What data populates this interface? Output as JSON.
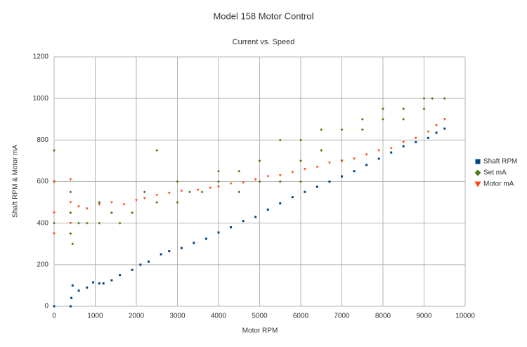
{
  "chart_data": {
    "type": "scatter",
    "title": "Model 158 Motor Control",
    "subtitle": "Current vs. Speed",
    "x_label": "Motor RPM",
    "y_label": "Shaft RPM & Motor mA",
    "xlim": [
      0,
      10000
    ],
    "xticks": [
      0,
      1000,
      2000,
      3000,
      4000,
      5000,
      6000,
      7000,
      8000,
      9000,
      10000
    ],
    "ylim": [
      0,
      1200
    ],
    "yticks": [
      0,
      200,
      400,
      600,
      800,
      1000,
      1200
    ],
    "grid": true,
    "legend": "right",
    "series": [
      {
        "name": "Shaft RPM",
        "color": "#004586",
        "marker": "square",
        "x": [
          0,
          400,
          420,
          450,
          600,
          800,
          950,
          1100,
          1200,
          1400,
          1600,
          1900,
          2100,
          2300,
          2600,
          2800,
          3100,
          3400,
          3700,
          4000,
          4300,
          4600,
          4900,
          5200,
          5500,
          5800,
          6100,
          6400,
          6700,
          7000,
          7300,
          7600,
          7900,
          8200,
          8500,
          8800,
          9100,
          9300,
          9500
        ],
        "values": [
          0,
          0,
          40,
          100,
          75,
          90,
          115,
          110,
          110,
          125,
          150,
          175,
          200,
          215,
          250,
          265,
          280,
          305,
          325,
          355,
          380,
          410,
          430,
          465,
          495,
          525,
          550,
          575,
          600,
          625,
          650,
          680,
          710,
          740,
          770,
          790,
          810,
          835,
          855
        ]
      },
      {
        "name": "Set mA",
        "color": "#4e7d18",
        "marker": "diamond",
        "x": [
          0,
          0,
          0,
          400,
          400,
          400,
          450,
          600,
          800,
          1100,
          1100,
          1400,
          1600,
          1900,
          2200,
          2500,
          2500,
          3000,
          3000,
          3300,
          3600,
          4000,
          4000,
          4500,
          4500,
          5000,
          5000,
          5500,
          5500,
          6000,
          6000,
          6000,
          6500,
          6500,
          7000,
          7000,
          7500,
          7500,
          8000,
          8000,
          8500,
          8500,
          9000,
          9000,
          9200,
          9500
        ],
        "values": [
          400,
          600,
          750,
          350,
          450,
          550,
          300,
          400,
          400,
          400,
          500,
          450,
          400,
          450,
          550,
          500,
          750,
          500,
          600,
          550,
          550,
          600,
          650,
          550,
          650,
          600,
          700,
          600,
          800,
          600,
          700,
          800,
          750,
          850,
          700,
          850,
          900,
          850,
          950,
          900,
          950,
          900,
          950,
          1000,
          1000,
          1000
        ]
      },
      {
        "name": "Motor mA",
        "color": "#ff420e",
        "marker": "triangle",
        "x": [
          0,
          0,
          0,
          400,
          400,
          400,
          600,
          800,
          1100,
          1400,
          1700,
          2000,
          2200,
          2500,
          2800,
          3100,
          3500,
          3800,
          4000,
          4300,
          4600,
          4900,
          5200,
          5500,
          5800,
          6100,
          6400,
          6700,
          7000,
          7300,
          7600,
          7900,
          8200,
          8500,
          8800,
          9100,
          9300,
          9500
        ],
        "values": [
          350,
          450,
          600,
          400,
          500,
          610,
          480,
          470,
          490,
          500,
          490,
          510,
          520,
          535,
          545,
          555,
          560,
          570,
          575,
          590,
          595,
          610,
          625,
          630,
          645,
          660,
          670,
          690,
          700,
          710,
          730,
          750,
          760,
          790,
          810,
          840,
          870,
          900
        ]
      }
    ]
  }
}
